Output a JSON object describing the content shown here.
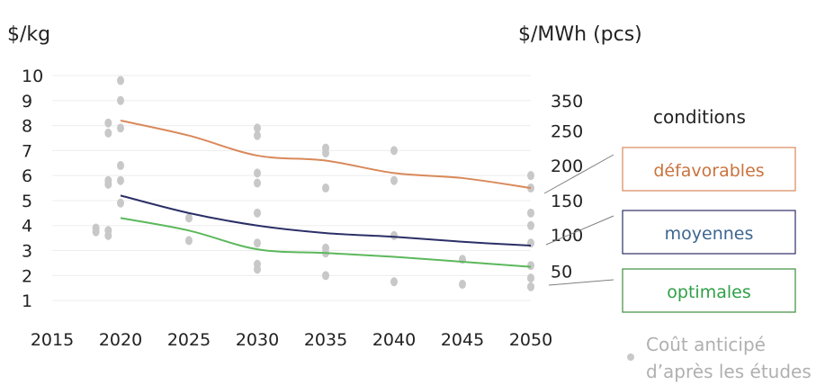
{
  "chart_data": {
    "type": "line",
    "y_left_unit": "$/kg",
    "y_right_unit": "$/MWh (pcs)",
    "x_ticks": [
      2015,
      2020,
      2025,
      2030,
      2035,
      2040,
      2045,
      2050
    ],
    "y_left_ticks": [
      1,
      2,
      3,
      4,
      5,
      6,
      7,
      8,
      9,
      10
    ],
    "y_right_ticks": [
      50,
      100,
      150,
      200,
      250,
      350
    ],
    "xlim": [
      2015,
      2050
    ],
    "ylim": [
      0.5,
      10
    ],
    "grid": "horizontal",
    "series": [
      {
        "name": "défavorables",
        "color": "#D9895A",
        "x": [
          2020,
          2025,
          2030,
          2035,
          2040,
          2045,
          2050
        ],
        "y": [
          8.2,
          7.6,
          6.8,
          6.6,
          6.1,
          5.9,
          5.5
        ]
      },
      {
        "name": "moyennes",
        "color": "#2B2F66",
        "x": [
          2020,
          2025,
          2030,
          2035,
          2040,
          2045,
          2050
        ],
        "y": [
          5.2,
          4.5,
          4.0,
          3.7,
          3.55,
          3.35,
          3.2
        ]
      },
      {
        "name": "optimales",
        "color": "#5CB85C",
        "x": [
          2020,
          2025,
          2030,
          2035,
          2040,
          2045,
          2050
        ],
        "y": [
          4.3,
          3.8,
          3.05,
          2.9,
          2.75,
          2.55,
          2.35
        ]
      }
    ],
    "studies": {
      "name": "Coût anticipé d’après les études",
      "color": "#C8C8C8",
      "points": [
        [
          2018.2,
          3.9
        ],
        [
          2018.2,
          3.75
        ],
        [
          2019.1,
          3.8
        ],
        [
          2019.1,
          3.6
        ],
        [
          2019.1,
          8.1
        ],
        [
          2019.1,
          7.7
        ],
        [
          2019.1,
          5.8
        ],
        [
          2019.1,
          5.65
        ],
        [
          2020,
          9.8
        ],
        [
          2020,
          9.0
        ],
        [
          2020,
          7.9
        ],
        [
          2020,
          6.4
        ],
        [
          2020,
          5.8
        ],
        [
          2020,
          4.9
        ],
        [
          2025,
          4.3
        ],
        [
          2025,
          3.4
        ],
        [
          2030,
          7.9
        ],
        [
          2030,
          7.6
        ],
        [
          2030,
          6.1
        ],
        [
          2030,
          5.7
        ],
        [
          2030,
          4.5
        ],
        [
          2030,
          3.3
        ],
        [
          2030,
          2.45
        ],
        [
          2030,
          2.25
        ],
        [
          2035,
          7.1
        ],
        [
          2035,
          6.9
        ],
        [
          2035,
          5.5
        ],
        [
          2035,
          3.1
        ],
        [
          2035,
          2.9
        ],
        [
          2035,
          2.0
        ],
        [
          2040,
          7.0
        ],
        [
          2040,
          5.8
        ],
        [
          2040,
          3.6
        ],
        [
          2040,
          1.75
        ],
        [
          2045,
          2.65
        ],
        [
          2045,
          1.65
        ],
        [
          2050,
          6.0
        ],
        [
          2050,
          5.5
        ],
        [
          2050,
          4.5
        ],
        [
          2050,
          4.0
        ],
        [
          2050,
          3.3
        ],
        [
          2050,
          2.4
        ],
        [
          2050,
          1.9
        ],
        [
          2050,
          1.55
        ]
      ]
    },
    "legend": {
      "title": "conditions",
      "entries": [
        "défavorables",
        "moyennes",
        "optimales"
      ],
      "marker_label": [
        "Coût anticipé",
        "d’après les études"
      ]
    }
  }
}
